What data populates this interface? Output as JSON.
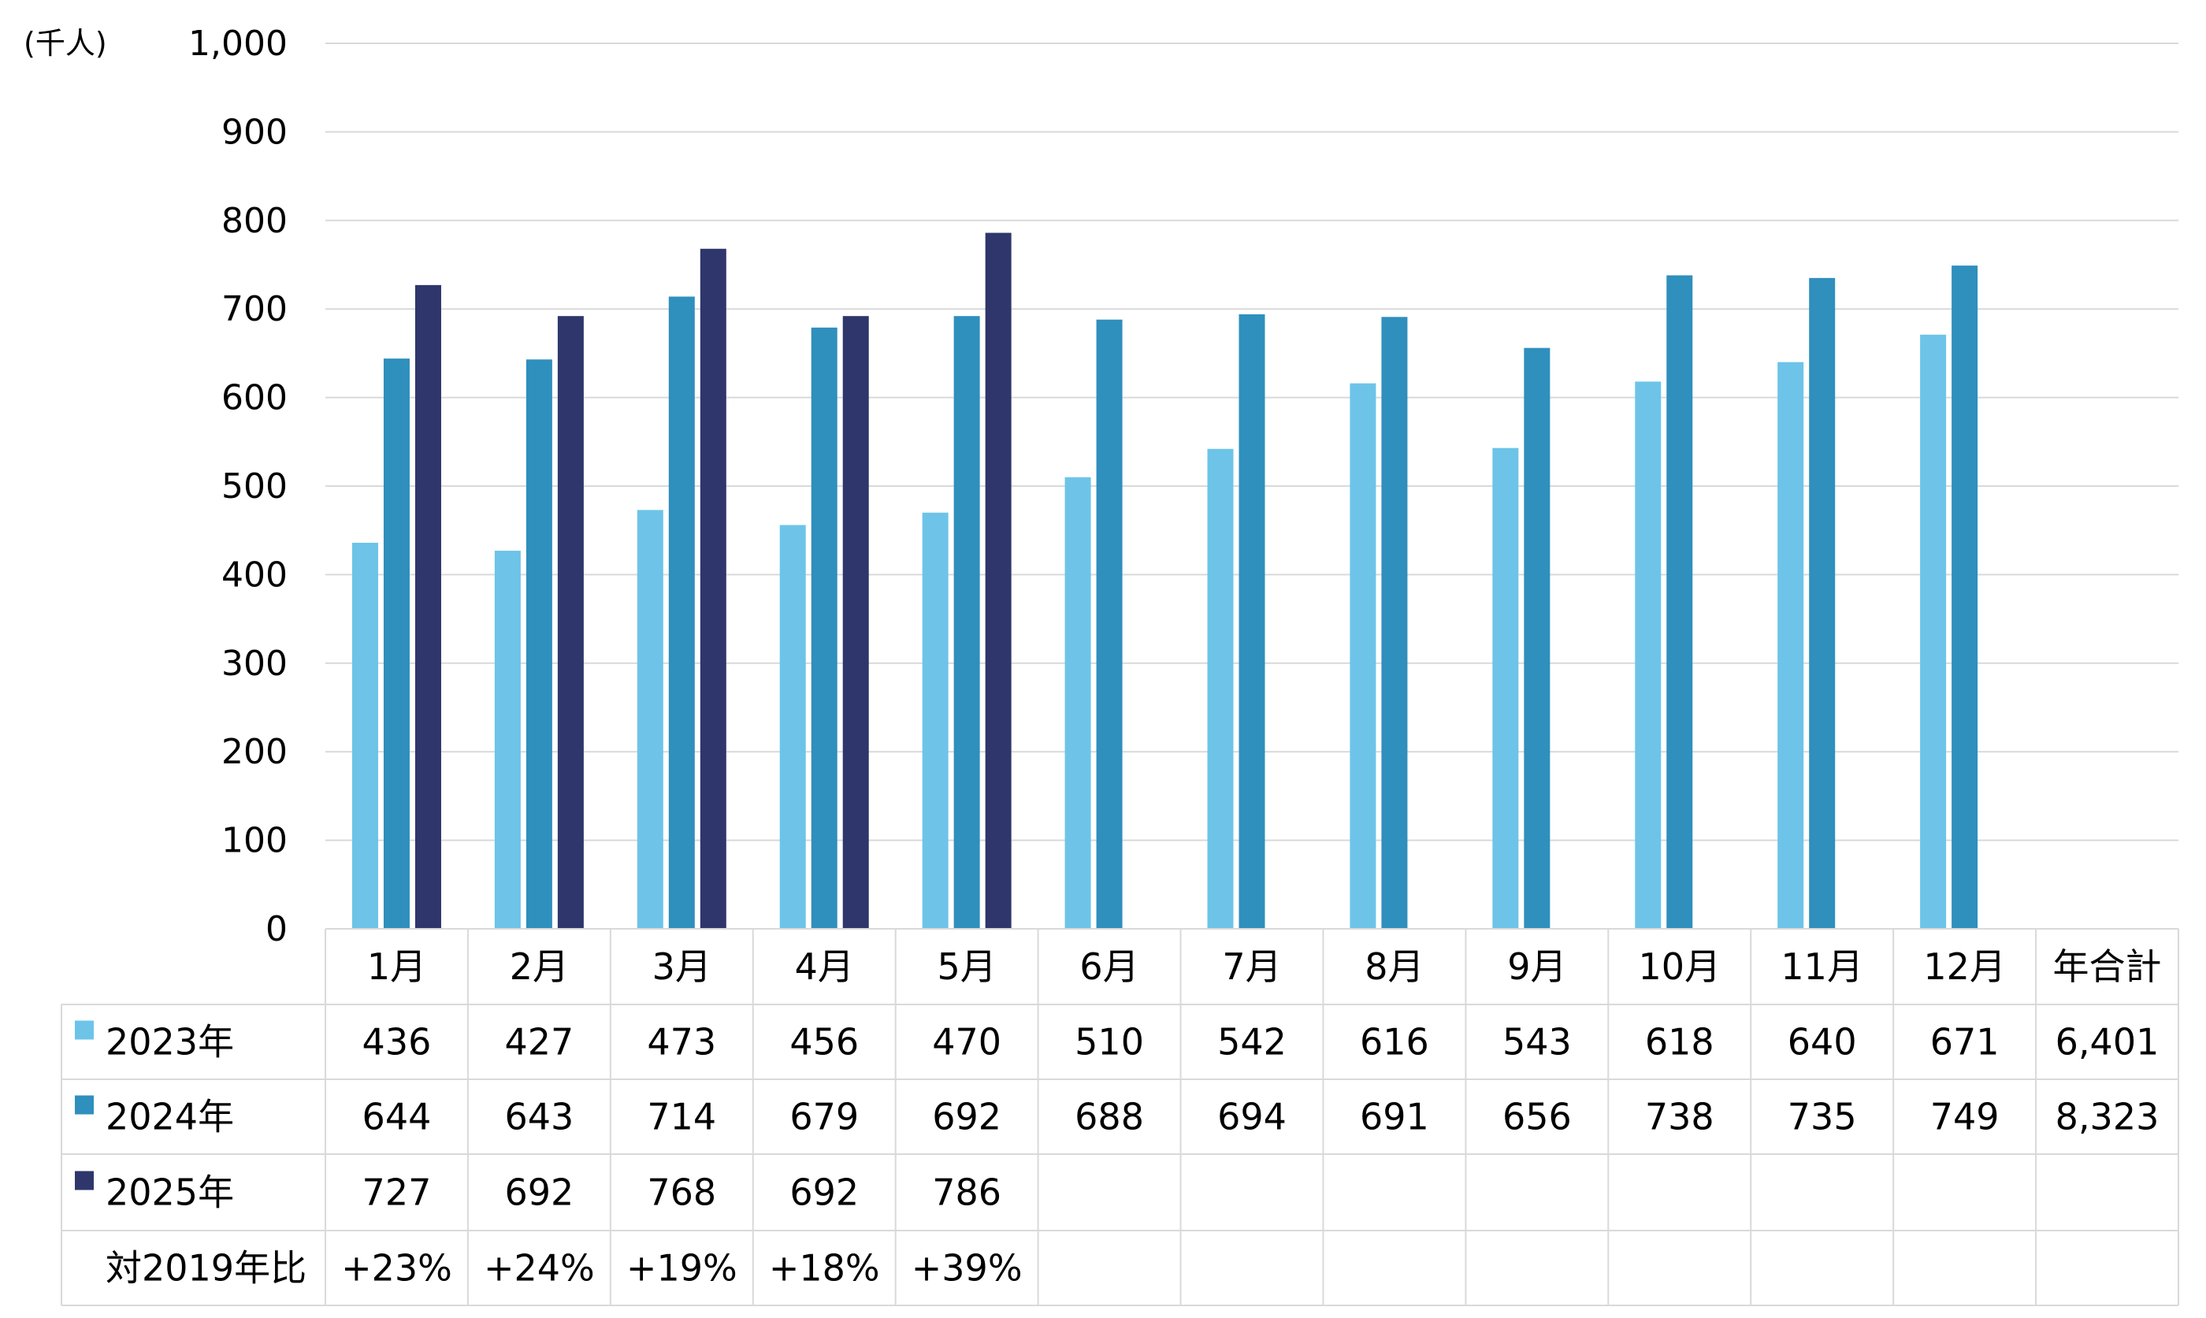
{
  "chart_data": {
    "type": "bar",
    "unit_label": "(千人)",
    "ylim": [
      0,
      1000
    ],
    "y_ticks": [
      "0",
      "100",
      "200",
      "300",
      "400",
      "500",
      "600",
      "700",
      "800",
      "900",
      "1,000"
    ],
    "y_tick_values": [
      0,
      100,
      200,
      300,
      400,
      500,
      600,
      700,
      800,
      900,
      1000
    ],
    "grid": true,
    "categories": [
      "1月",
      "2月",
      "3月",
      "4月",
      "5月",
      "6月",
      "7月",
      "8月",
      "9月",
      "10月",
      "11月",
      "12月"
    ],
    "total_header": "年合計",
    "series": [
      {
        "name": "2023年",
        "color": "#6dc4e8",
        "values": [
          436,
          427,
          473,
          456,
          470,
          510,
          542,
          616,
          543,
          618,
          640,
          671
        ],
        "table_values": [
          "436",
          "427",
          "473",
          "456",
          "470",
          "510",
          "542",
          "616",
          "543",
          "618",
          "640",
          "671"
        ],
        "total": "6,401"
      },
      {
        "name": "2024年",
        "color": "#2f8fbd",
        "values": [
          644,
          643,
          714,
          679,
          692,
          688,
          694,
          691,
          656,
          738,
          735,
          749
        ],
        "table_values": [
          "644",
          "643",
          "714",
          "679",
          "692",
          "688",
          "694",
          "691",
          "656",
          "738",
          "735",
          "749"
        ],
        "total": "8,323"
      },
      {
        "name": "2025年",
        "color": "#2e366b",
        "values": [
          727,
          692,
          768,
          692,
          786,
          null,
          null,
          null,
          null,
          null,
          null,
          null
        ],
        "table_values": [
          "727",
          "692",
          "768",
          "692",
          "786",
          "",
          "",
          "",
          "",
          "",
          "",
          ""
        ],
        "total": ""
      }
    ],
    "ratio_row": {
      "label": "対2019年比",
      "values": [
        "+23%",
        "+24%",
        "+19%",
        "+18%",
        "+39%",
        "",
        "",
        "",
        "",
        "",
        "",
        ""
      ]
    }
  }
}
